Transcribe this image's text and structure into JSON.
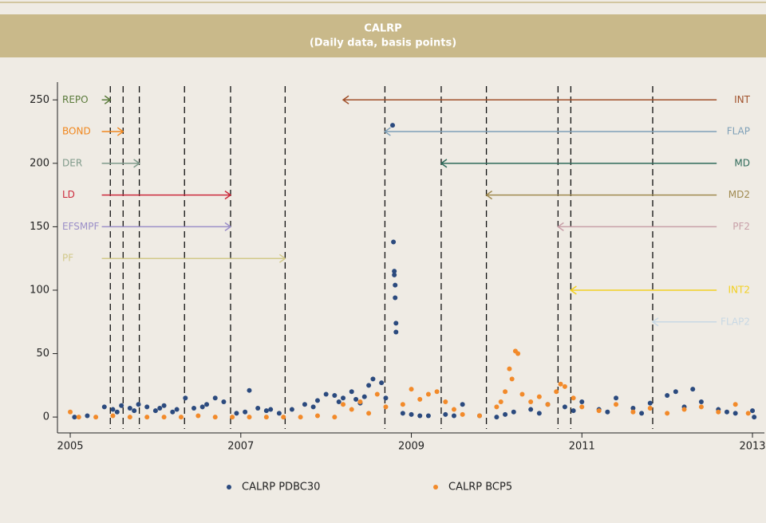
{
  "chart_data": {
    "type": "scatter",
    "title": "CALRP",
    "subtitle": "(Daily data, basis points)",
    "xlim": [
      2004.85,
      2013.14
    ],
    "xticks": [
      2005,
      2007,
      2009,
      2011,
      2013
    ],
    "ylim": [
      -12.5,
      264
    ],
    "yticks": [
      0,
      50,
      100,
      150,
      200,
      250
    ],
    "vlines": [
      2005.47,
      2005.62,
      2005.81,
      2006.34,
      2006.88,
      2007.52,
      2008.69,
      2009.35,
      2009.88,
      2010.72,
      2010.87,
      2011.83
    ],
    "annotations": [
      {
        "label": "REPO",
        "y": 250,
        "x_from": 2005.37,
        "x_to": 2005.47,
        "color": "#5a7a3a"
      },
      {
        "label": "BOND",
        "y": 225,
        "x_from": 2005.37,
        "x_to": 2005.62,
        "color": "#f0871e"
      },
      {
        "label": "DER",
        "y": 200,
        "x_from": 2005.37,
        "x_to": 2005.81,
        "color": "#7f9a8a"
      },
      {
        "label": "LD",
        "y": 175,
        "x_from": 2005.37,
        "x_to": 2006.88,
        "color": "#cc2b3d"
      },
      {
        "label": "EFSMPF",
        "y": 150,
        "x_from": 2005.37,
        "x_to": 2006.88,
        "color": "#9b8fc8"
      },
      {
        "label": "PF",
        "y": 125,
        "x_from": 2005.37,
        "x_to": 2007.52,
        "color": "#d2c98a"
      },
      {
        "label": "INT",
        "y": 250,
        "x_from": 2012.58,
        "x_to": 2008.2,
        "color": "#a0502a"
      },
      {
        "label": "FLAP",
        "y": 225,
        "x_from": 2012.58,
        "x_to": 2008.69,
        "color": "#7fa0b8"
      },
      {
        "label": "MD",
        "y": 200,
        "x_from": 2012.58,
        "x_to": 2009.35,
        "color": "#2f6a5a"
      },
      {
        "label": "MD2",
        "y": 175,
        "x_from": 2012.58,
        "x_to": 2009.88,
        "color": "#a08a50"
      },
      {
        "label": "PF2",
        "y": 150,
        "x_from": 2012.58,
        "x_to": 2010.72,
        "color": "#c8a0a8"
      },
      {
        "label": "INT2",
        "y": 100,
        "x_from": 2012.58,
        "x_to": 2010.87,
        "color": "#f2d020"
      },
      {
        "label": "FLAP2",
        "y": 75,
        "x_from": 2012.58,
        "x_to": 2011.83,
        "color": "#c8d8e4"
      }
    ],
    "series": [
      {
        "name": "CALRP PDBC30",
        "color": "#2b4a7e",
        "x": [
          2005.05,
          2005.2,
          2005.4,
          2005.5,
          2005.6,
          2005.7,
          2005.8,
          2005.9,
          2006.0,
          2006.1,
          2006.2,
          2006.35,
          2006.45,
          2006.6,
          2006.7,
          2006.8,
          2006.95,
          2007.1,
          2007.2,
          2007.3,
          2007.45,
          2007.6,
          2007.75,
          2007.9,
          2008.0,
          2008.1,
          2008.2,
          2008.3,
          2008.4,
          2008.5,
          2008.55,
          2008.65,
          2008.7,
          2008.78,
          2008.79,
          2008.8,
          2008.8,
          2008.81,
          2008.81,
          2008.82,
          2008.82,
          2008.9,
          2009.0,
          2009.2,
          2009.4,
          2009.6,
          2009.8,
          2010.0,
          2010.2,
          2010.4,
          2010.6,
          2010.8,
          2011.0,
          2011.2,
          2011.4,
          2011.6,
          2011.8,
          2012.0,
          2012.1,
          2012.3,
          2012.4,
          2012.6,
          2012.8,
          2013.0,
          2013.02,
          2005.55,
          2005.75,
          2006.05,
          2006.25,
          2006.55,
          2007.05,
          2007.35,
          2007.85,
          2008.15,
          2008.35,
          2008.45,
          2009.1,
          2009.5,
          2010.1,
          2010.5,
          2010.9,
          2011.3,
          2011.7,
          2012.2,
          2012.7
        ],
        "values": [
          0,
          1,
          8,
          6,
          9,
          7,
          10,
          8,
          5,
          9,
          4,
          15,
          7,
          10,
          15,
          12,
          3,
          21,
          7,
          5,
          3,
          6,
          10,
          13,
          18,
          17,
          15,
          20,
          11,
          25,
          30,
          27,
          15,
          230,
          138,
          115,
          112,
          104,
          94,
          74,
          67,
          3,
          2,
          1,
          2,
          10,
          1,
          0,
          4,
          6,
          10,
          8,
          12,
          6,
          15,
          7,
          11,
          17,
          20,
          22,
          12,
          6,
          3,
          5,
          0,
          4,
          5,
          7,
          6,
          8,
          4,
          6,
          8,
          12,
          14,
          16,
          1,
          1,
          2,
          3,
          5,
          4,
          3,
          8,
          4
        ]
      },
      {
        "name": "CALRP BCP5",
        "color": "#f28a2a",
        "x": [
          2005.0,
          2005.1,
          2005.3,
          2005.5,
          2005.7,
          2005.9,
          2006.1,
          2006.3,
          2006.5,
          2006.7,
          2006.9,
          2007.1,
          2007.3,
          2007.5,
          2007.7,
          2007.9,
          2008.1,
          2008.2,
          2008.3,
          2008.4,
          2008.5,
          2008.6,
          2008.7,
          2008.9,
          2009.0,
          2009.1,
          2009.2,
          2009.3,
          2009.4,
          2009.5,
          2009.6,
          2009.8,
          2010.0,
          2010.05,
          2010.1,
          2010.15,
          2010.18,
          2010.22,
          2010.25,
          2010.3,
          2010.4,
          2010.5,
          2010.6,
          2010.7,
          2010.75,
          2010.8,
          2010.9,
          2011.0,
          2011.2,
          2011.4,
          2011.6,
          2011.8,
          2012.0,
          2012.2,
          2012.4,
          2012.6,
          2012.8,
          2012.95
        ],
        "values": [
          4,
          0,
          0,
          1,
          0,
          0,
          0,
          0,
          1,
          0,
          0,
          0,
          0,
          0,
          0,
          1,
          0,
          10,
          6,
          12,
          3,
          18,
          8,
          10,
          22,
          14,
          18,
          20,
          12,
          6,
          2,
          1,
          8,
          12,
          20,
          38,
          30,
          52,
          50,
          18,
          12,
          16,
          10,
          20,
          26,
          24,
          15,
          8,
          5,
          10,
          4,
          7,
          3,
          6,
          8,
          4,
          10,
          3
        ]
      }
    ]
  }
}
